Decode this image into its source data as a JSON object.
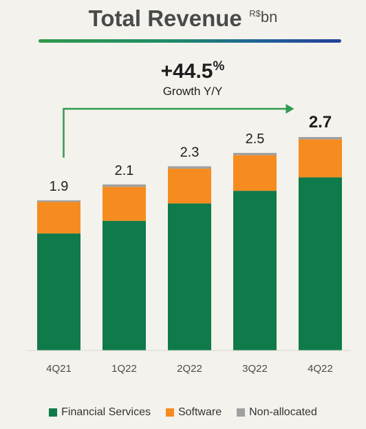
{
  "header": {
    "title": "Total Revenue",
    "unit_prefix": "R$",
    "unit_suffix": "bn"
  },
  "growth": {
    "value": "+44.5",
    "suffix": "%",
    "label": "Growth Y/Y"
  },
  "chart_data": {
    "type": "bar",
    "stacked": true,
    "categories": [
      "4Q21",
      "1Q22",
      "2Q22",
      "3Q22",
      "4Q22"
    ],
    "series": [
      {
        "name": "Financial Services",
        "color": "#0f7a4a",
        "values": [
          1.48,
          1.64,
          1.86,
          2.02,
          2.19
        ]
      },
      {
        "name": "Software",
        "color": "#f68b1f",
        "values": [
          0.4,
          0.43,
          0.44,
          0.45,
          0.48
        ]
      },
      {
        "name": "Non-allocated",
        "color": "#a0a0a0",
        "values": [
          0.02,
          0.03,
          0.03,
          0.03,
          0.03
        ]
      }
    ],
    "totals": [
      "1.9",
      "2.1",
      "2.3",
      "2.5",
      "2.7"
    ],
    "highlight_last_total": true,
    "ylim": [
      0,
      2.7
    ],
    "grid": false,
    "legend_position": "bottom"
  }
}
